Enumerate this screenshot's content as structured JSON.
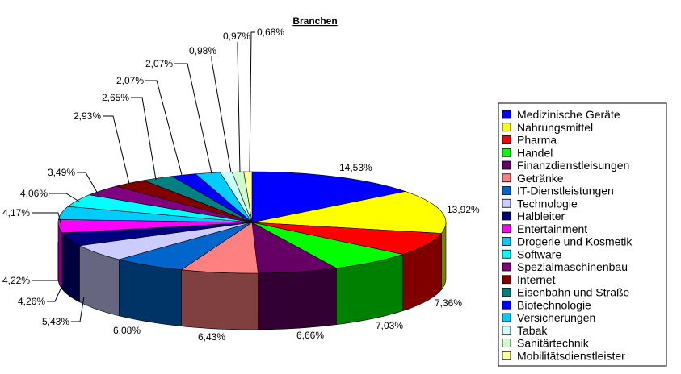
{
  "chart_data": {
    "type": "pie",
    "title": "Branchen",
    "three_d": true,
    "legend_position": "right",
    "categories": [
      "Medizinische Geräte",
      "Nahrungsmittel",
      "Pharma",
      "Handel",
      "Finanzdienstleisungen",
      "Getränke",
      "IT-Dienstleistungen",
      "Technologie",
      "Halbleiter",
      "Entertainment",
      "Drogerie und Kosmetik",
      "Software",
      "Spezialmaschinenbau",
      "Internet",
      "Eisenbahn und Straße",
      "Biotechnologie",
      "Versicherungen",
      "Tabak",
      "Sanitärtechnik",
      "Mobilitätsdienstleister"
    ],
    "values": [
      14.53,
      13.92,
      7.36,
      7.03,
      6.66,
      6.43,
      6.08,
      5.43,
      4.26,
      4.22,
      4.17,
      4.06,
      3.49,
      2.93,
      2.65,
      2.07,
      2.07,
      0.98,
      0.97,
      0.68
    ],
    "data_labels": [
      "14,53%",
      "13,92%",
      "7,36%",
      "7,03%",
      "6,66%",
      "6,43%",
      "6,08%",
      "5,43%",
      "4,26%",
      "4,22%",
      "4,17%",
      "4,06%",
      "3,49%",
      "2,93%",
      "2,65%",
      "2,07%",
      "2,07%",
      "0,98%",
      "0,97%",
      "0,68%"
    ],
    "colors": [
      "#0000ff",
      "#ffff00",
      "#ff0000",
      "#00ff00",
      "#660066",
      "#ff8080",
      "#0066cc",
      "#ccccff",
      "#000080",
      "#ff00ff",
      "#00ccff",
      "#00ffff",
      "#800080",
      "#800000",
      "#008080",
      "#0000ff",
      "#00ccff",
      "#ccffff",
      "#ccffcc",
      "#ffff99"
    ]
  }
}
